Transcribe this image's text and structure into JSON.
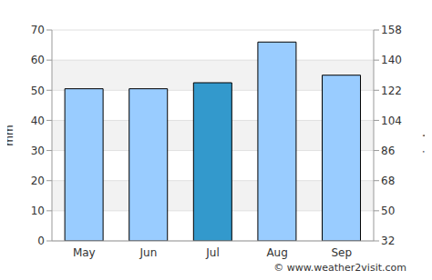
{
  "chart_data": {
    "type": "bar",
    "categories": [
      "May",
      "Jun",
      "Jul",
      "Aug",
      "Sep"
    ],
    "values": [
      50.5,
      50.5,
      52.5,
      66,
      55
    ],
    "colors": [
      "#99ccff",
      "#99ccff",
      "#3399cc",
      "#99ccff",
      "#99ccff"
    ],
    "ylabel": "mm",
    "y2label": "inches",
    "ylim": [
      0,
      70
    ],
    "yticks": [
      0,
      10,
      20,
      30,
      40,
      50,
      60,
      70
    ],
    "y2lim": [
      32,
      158
    ],
    "y2ticks": [
      32,
      50,
      68,
      86,
      104,
      122,
      140,
      158
    ],
    "grid": true,
    "annotations": [
      "© www.weather2visit.com"
    ]
  }
}
